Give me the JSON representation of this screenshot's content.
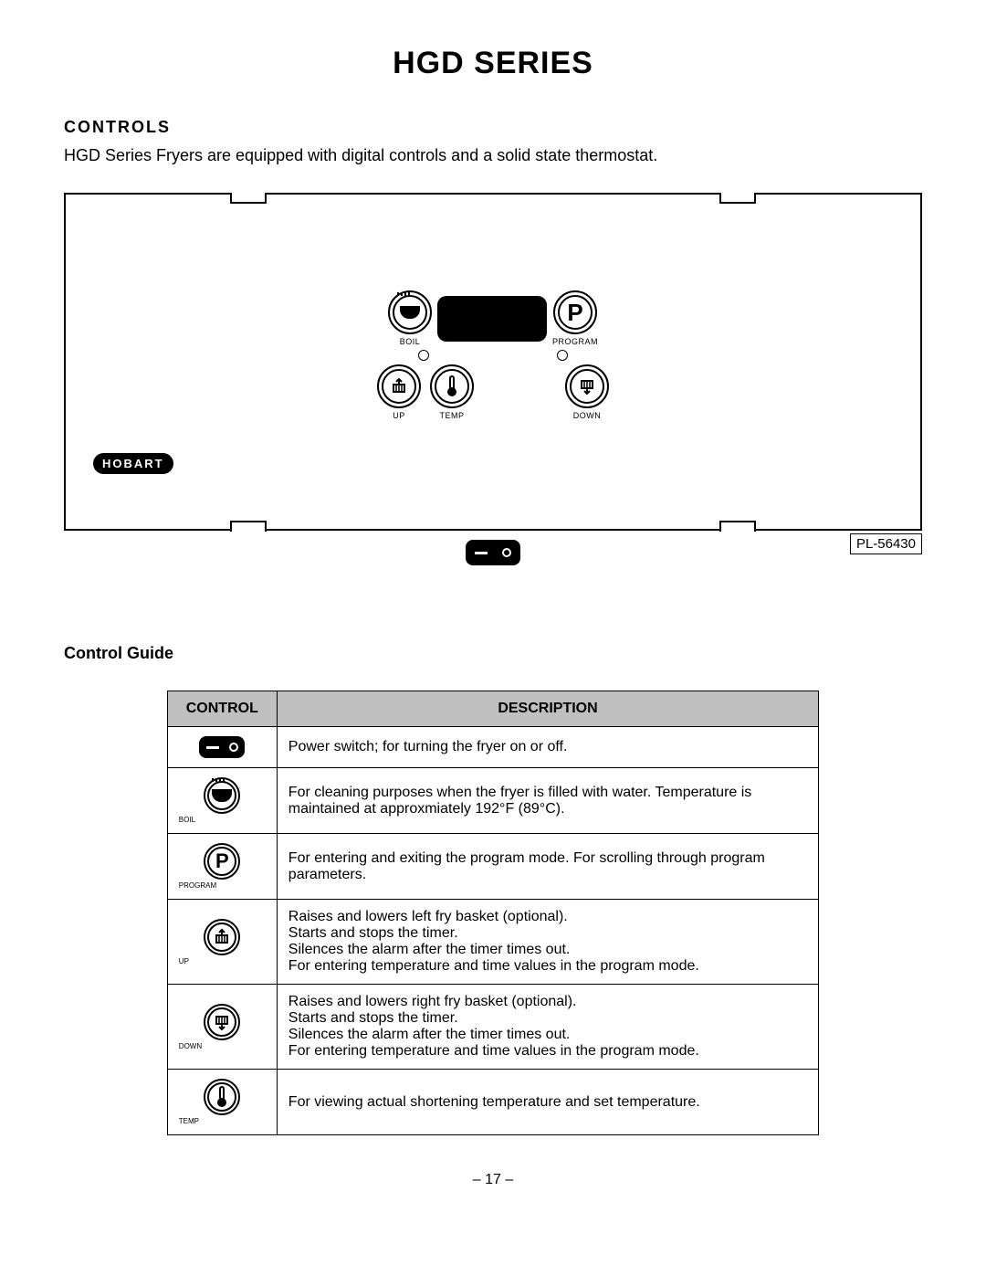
{
  "page_title": "HGD SERIES",
  "section_heading": "CONTROLS",
  "intro_text": "HGD Series Fryers are equipped with digital controls and a solid state thermostat.",
  "panel": {
    "brand": "HOBART",
    "buttons": {
      "boil": "BOIL",
      "program": "PROGRAM",
      "up": "UP",
      "temp": "TEMP",
      "down": "DOWN"
    },
    "program_letter": "P"
  },
  "part_number": "PL-56430",
  "subheading": "Control Guide",
  "table": {
    "headers": {
      "control": "CONTROL",
      "description": "DESCRIPTION"
    },
    "rows": [
      {
        "icon": "power",
        "label": "",
        "desc": "Power switch; for turning the fryer on or off."
      },
      {
        "icon": "boil",
        "label": "BOIL",
        "desc": "For cleaning purposes when the fryer is filled with water. Temperature is maintained at approxmiately 192°F (89°C)."
      },
      {
        "icon": "program",
        "label": "PROGRAM",
        "desc": "For entering and exiting the program mode. For scrolling through program parameters."
      },
      {
        "icon": "up",
        "label": "UP",
        "desc": "Raises and lowers left fry basket (optional).\nStarts and stops the timer.\nSilences the alarm after the timer times out.\nFor entering temperature and time values in the program mode."
      },
      {
        "icon": "down",
        "label": "DOWN",
        "desc": "Raises and lowers right fry basket (optional).\nStarts and stops the timer.\nSilences the alarm after the timer times out.\nFor entering temperature and time values in the program mode."
      },
      {
        "icon": "temp",
        "label": "TEMP",
        "desc": "For viewing actual shortening temperature and set temperature."
      }
    ]
  },
  "page_number": "– 17 –"
}
